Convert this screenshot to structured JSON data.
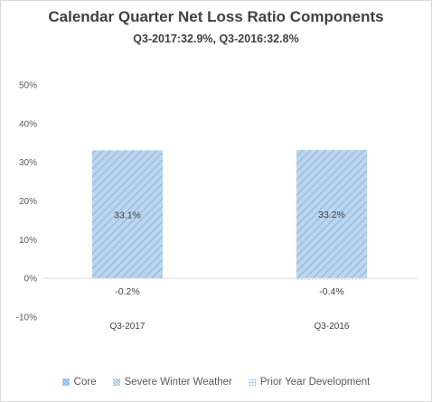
{
  "chart_data": {
    "type": "bar",
    "stacked": true,
    "title": "Calendar Quarter Net Loss Ratio Components",
    "subtitle": "Q3-2017:32.9%, Q3-2016:32.8%",
    "categories": [
      "Q3-2017",
      "Q3-2016"
    ],
    "series": [
      {
        "name": "Core",
        "values": [
          33.1,
          33.2
        ],
        "labels": [
          "33.1%",
          "33.2%"
        ],
        "color": "#9dc3e6"
      },
      {
        "name": "Severe Winter Weather",
        "values": [
          0,
          0
        ],
        "labels": [
          "",
          ""
        ],
        "color": "#bdd7ee"
      },
      {
        "name": "Prior Year Development",
        "values": [
          -0.2,
          -0.4
        ],
        "labels": [
          "-0.2%",
          "-0.4%"
        ],
        "color": "#deebf7"
      }
    ],
    "yaxis": {
      "min": -10,
      "max": 50,
      "step": 10,
      "ticks": [
        "-10%",
        "0%",
        "10%",
        "20%",
        "30%",
        "40%",
        "50%"
      ]
    },
    "grid": false,
    "legend_position": "bottom"
  }
}
